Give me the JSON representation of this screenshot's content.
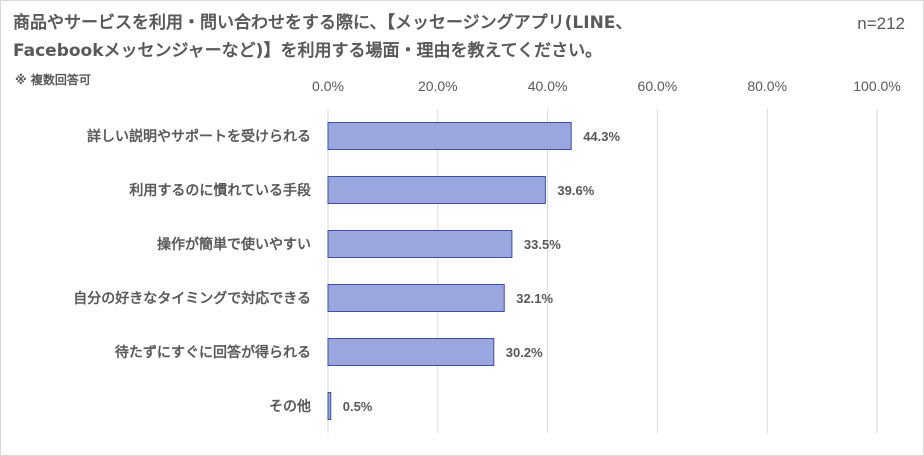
{
  "chart_data": {
    "type": "bar",
    "orientation": "horizontal",
    "title_line1": "商品やサービスを利用・問い合わせをする際に、【メッセージングアプリ(LINE、",
    "title_line2": "Facebookメッセンジャーなど)】を利用する場面・理由を教えてください。",
    "sample_size": "n=212",
    "note": "※ 複数回答可",
    "categories": [
      "詳しい説明やサポートを受けられる",
      "利用するのに慣れている手段",
      "操作が簡単で使いやすい",
      "自分の好きなタイミングで対応できる",
      "待たずにすぐに回答が得られる",
      "その他"
    ],
    "values": [
      44.3,
      39.6,
      33.5,
      32.1,
      30.2,
      0.5
    ],
    "data_labels": [
      "44.3%",
      "39.6%",
      "33.5%",
      "32.1%",
      "30.2%",
      "0.5%"
    ],
    "xlim": [
      0,
      100
    ],
    "x_ticks": [
      "0.0%",
      "20.0%",
      "40.0%",
      "60.0%",
      "80.0%",
      "100.0%"
    ],
    "x_tick_values": [
      0,
      20,
      40,
      60,
      80,
      100
    ],
    "axis_position": "top",
    "grid": true,
    "legend": "none",
    "colors": {
      "bar_fill": "#9aa6de",
      "bar_stroke": "#3a4fb0",
      "gridline": "#d9d9d9",
      "text": "#595959"
    }
  }
}
